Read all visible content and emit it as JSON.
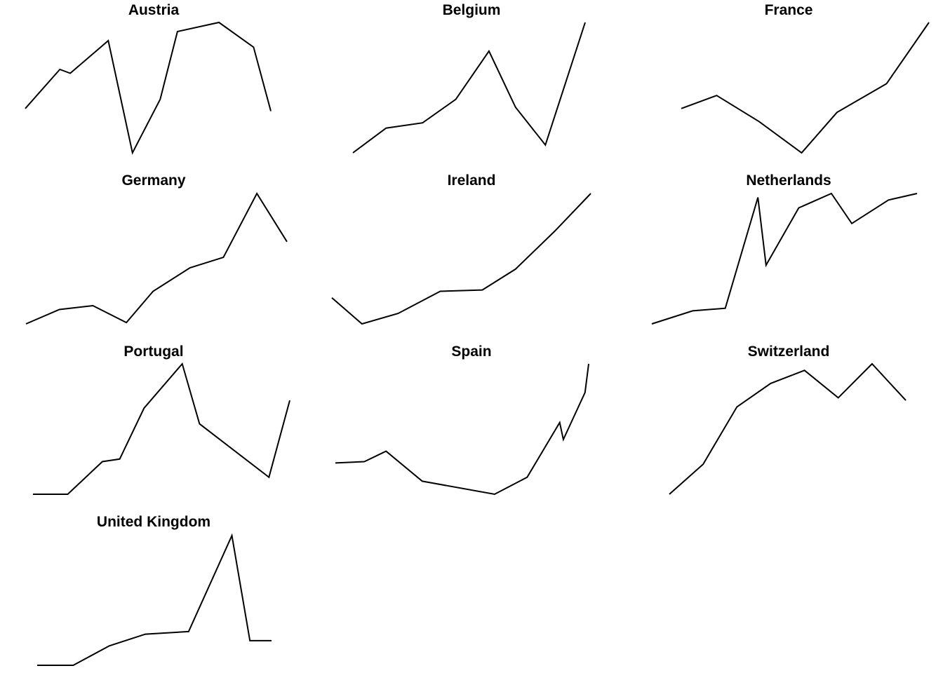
{
  "colors": {
    "line": "#000000",
    "background": "#ffffff"
  },
  "chart_data": {
    "type": "line",
    "layout": "small-multiples",
    "grid": false,
    "axes_visible": false,
    "panels": [
      {
        "name": "Austria",
        "points": [
          [
            0,
            34
          ],
          [
            1,
            64
          ],
          [
            1.3,
            61
          ],
          [
            2.4,
            86
          ],
          [
            3.1,
            0
          ],
          [
            3.9,
            41
          ],
          [
            4.4,
            93
          ],
          [
            5.6,
            100
          ],
          [
            6.6,
            81
          ],
          [
            7.1,
            32
          ]
        ]
      },
      {
        "name": "Belgium",
        "points": [
          [
            0,
            0
          ],
          [
            1,
            19
          ],
          [
            2.1,
            23
          ],
          [
            3.1,
            41
          ],
          [
            4.1,
            78
          ],
          [
            4.9,
            35
          ],
          [
            5.8,
            6
          ],
          [
            7,
            100
          ]
        ]
      },
      {
        "name": "France",
        "points": [
          [
            0,
            34
          ],
          [
            1,
            44
          ],
          [
            2.2,
            24
          ],
          [
            3.4,
            0
          ],
          [
            4.4,
            31
          ],
          [
            5.8,
            53
          ],
          [
            7,
            100
          ]
        ]
      },
      {
        "name": "Germany",
        "points": [
          [
            0,
            0
          ],
          [
            1,
            11
          ],
          [
            2,
            14
          ],
          [
            3,
            1
          ],
          [
            3.8,
            25
          ],
          [
            4.9,
            43
          ],
          [
            5.9,
            51
          ],
          [
            6.9,
            100
          ],
          [
            7.8,
            63
          ]
        ]
      },
      {
        "name": "Ireland",
        "points": [
          [
            0,
            20
          ],
          [
            1,
            0
          ],
          [
            2.2,
            8
          ],
          [
            3.6,
            25
          ],
          [
            5,
            26
          ],
          [
            6.1,
            42
          ],
          [
            7.4,
            71
          ],
          [
            8.6,
            100
          ]
        ]
      },
      {
        "name": "Netherlands",
        "points": [
          [
            0,
            0
          ],
          [
            1,
            10
          ],
          [
            1.8,
            12
          ],
          [
            2.6,
            97
          ],
          [
            2.8,
            45
          ],
          [
            3.6,
            89
          ],
          [
            4.4,
            100
          ],
          [
            4.9,
            77
          ],
          [
            5.8,
            95
          ],
          [
            6.5,
            100
          ]
        ]
      },
      {
        "name": "Portugal",
        "points": [
          [
            0,
            0
          ],
          [
            1,
            0
          ],
          [
            2,
            25
          ],
          [
            2.5,
            27
          ],
          [
            3.2,
            66
          ],
          [
            4.3,
            100
          ],
          [
            4.8,
            54
          ],
          [
            6.8,
            13
          ],
          [
            7.4,
            72
          ]
        ]
      },
      {
        "name": "Spain",
        "points": [
          [
            0,
            24
          ],
          [
            0.8,
            25
          ],
          [
            1.4,
            33
          ],
          [
            2.4,
            10
          ],
          [
            4.4,
            0
          ],
          [
            5.3,
            13
          ],
          [
            6.2,
            55
          ],
          [
            6.3,
            42
          ],
          [
            6.9,
            78
          ],
          [
            7,
            100
          ]
        ]
      },
      {
        "name": "Switzerland",
        "points": [
          [
            0,
            0
          ],
          [
            1,
            23
          ],
          [
            2,
            67
          ],
          [
            3,
            85
          ],
          [
            4,
            95
          ],
          [
            5,
            74
          ],
          [
            6,
            100
          ],
          [
            7,
            72
          ]
        ]
      },
      {
        "name": "United Kingdom",
        "points": [
          [
            0,
            0
          ],
          [
            1,
            0
          ],
          [
            2,
            15
          ],
          [
            3,
            24
          ],
          [
            4.2,
            26
          ],
          [
            5.4,
            100
          ],
          [
            5.9,
            19
          ],
          [
            6.5,
            19
          ]
        ]
      }
    ]
  }
}
